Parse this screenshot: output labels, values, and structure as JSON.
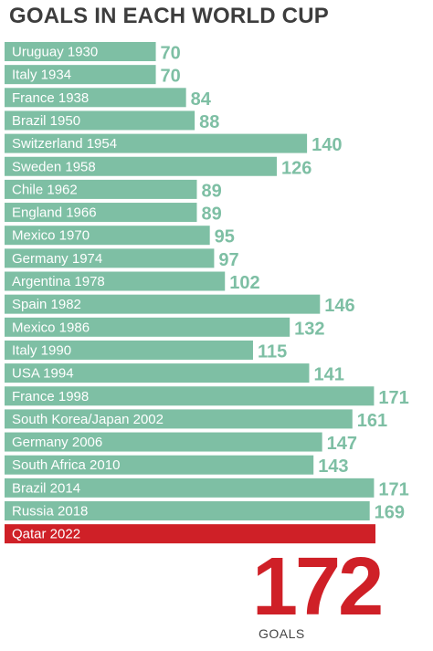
{
  "title": "GOALS IN EACH WORLD CUP",
  "colors": {
    "bar": "#7ebfa4",
    "highlight": "#cf2027",
    "value_text": "#7ebfa4",
    "title_text": "#3d3d3d"
  },
  "highlight": {
    "label": "Qatar 2022",
    "value": "172",
    "unit": "GOALS"
  },
  "chart_data": {
    "type": "bar",
    "orientation": "horizontal",
    "title": "GOALS IN EACH WORLD CUP",
    "categories": [
      "Uruguay 1930",
      "Italy 1934",
      "France 1938",
      "Brazil 1950",
      "Switzerland 1954",
      "Sweden 1958",
      "Chile 1962",
      "England 1966",
      "Mexico 1970",
      "Germany 1974",
      "Argentina 1978",
      "Spain 1982",
      "Mexico 1986",
      "Italy 1990",
      "USA 1994",
      "France 1998",
      "South Korea/Japan 2002",
      "Germany 2006",
      "South Africa 2010",
      "Brazil 2014",
      "Russia 2018",
      "Qatar 2022"
    ],
    "values": [
      70,
      70,
      84,
      88,
      140,
      126,
      89,
      89,
      95,
      97,
      102,
      146,
      132,
      115,
      141,
      171,
      161,
      147,
      143,
      171,
      169,
      172
    ],
    "grid": false,
    "legend": "none"
  }
}
